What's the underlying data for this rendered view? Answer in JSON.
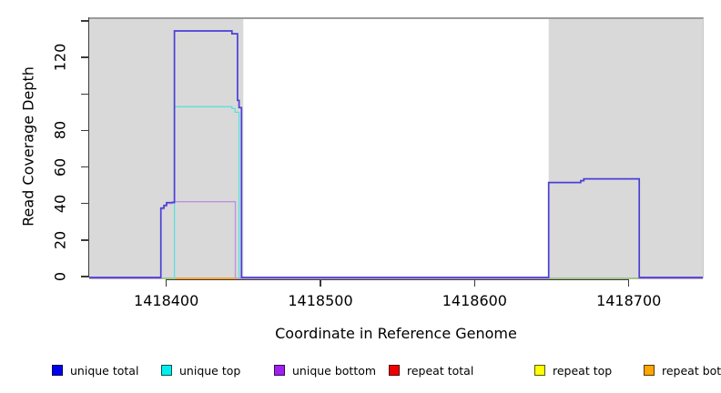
{
  "chart_data": {
    "type": "line",
    "step": true,
    "title": "",
    "xlabel": "Coordinate in Reference Genome",
    "ylabel": "Read Coverage Depth",
    "xlim": [
      1418350,
      1418748
    ],
    "ylim": [
      0,
      142
    ],
    "grid": false,
    "legend_position": "bottom-horizontal",
    "x_ticks": [
      {
        "value": 1418400,
        "label": "1418400"
      },
      {
        "value": 1418500,
        "label": "1418500"
      },
      {
        "value": 1418600,
        "label": "1418600"
      },
      {
        "value": 1418700,
        "label": "1418700"
      }
    ],
    "y_ticks": [
      {
        "value": 0,
        "label": "0"
      },
      {
        "value": 20,
        "label": "20"
      },
      {
        "value": 40,
        "label": "40"
      },
      {
        "value": 60,
        "label": "60"
      },
      {
        "value": 80,
        "label": "80"
      },
      {
        "value": 100,
        "label": ""
      },
      {
        "value": 120,
        "label": "120"
      },
      {
        "value": 140,
        "label": ""
      }
    ],
    "shaded_regions": [
      {
        "x0": 1418350,
        "x1": 1418450,
        "color": "#d9d9d9"
      },
      {
        "x0": 1418648,
        "x1": 1418748,
        "color": "#d9d9d9"
      }
    ],
    "series": [
      {
        "name": "repeat total",
        "line_color": "#dd2222",
        "segments": [
          [
            [
              1418350,
              0
            ],
            [
              1418748,
              0
            ]
          ]
        ]
      },
      {
        "name": "repeat top",
        "line_color": "#f0ec40",
        "segments": [
          [
            [
              1418350,
              0
            ],
            [
              1418748,
              0
            ]
          ]
        ]
      },
      {
        "name": "repeat bottom",
        "line_color": "#ff9a1e",
        "segments": [
          [
            [
              1418350,
              0
            ],
            [
              1418748,
              0
            ]
          ]
        ]
      },
      {
        "name": "unique top",
        "line_color": "#5ee0dc",
        "segments": [
          [
            [
              1418350,
              0
            ],
            [
              1418405.3,
              0
            ],
            [
              1418405.3,
              94
            ],
            [
              1418442.6,
              94
            ],
            [
              1418442.6,
              93
            ],
            [
              1418444.6,
              93
            ],
            [
              1418444.6,
              91
            ],
            [
              1418447.2,
              91
            ],
            [
              1418447.2,
              0
            ],
            [
              1418748,
              0
            ]
          ]
        ]
      },
      {
        "name": "unique bottom",
        "line_color": "#bb93dd",
        "segments": [
          [
            [
              1418350,
              0
            ],
            [
              1418396.5,
              0
            ],
            [
              1418396.5,
              38
            ],
            [
              1418398.5,
              38
            ],
            [
              1418398.5,
              39.5
            ],
            [
              1418400.2,
              39.5
            ],
            [
              1418400.2,
              41
            ],
            [
              1418403.8,
              41
            ],
            [
              1418403.8,
              42
            ],
            [
              1418444.8,
              42
            ],
            [
              1418444.8,
              0
            ],
            [
              1418748,
              0
            ]
          ]
        ]
      },
      {
        "name": "unlabeled green baseline",
        "line_color": "#8ecb8e",
        "segments": [
          [
            [
              1418398.5,
              0
            ],
            [
              1418403.5,
              0
            ]
          ],
          [
            [
              1418648,
              0
            ],
            [
              1418706.8,
              0
            ]
          ]
        ]
      },
      {
        "name": "unique total",
        "line_color": "#4a3fd8",
        "segments": [
          [
            [
              1418350,
              0
            ],
            [
              1418396.5,
              0
            ],
            [
              1418396.5,
              38
            ],
            [
              1418398.5,
              38
            ],
            [
              1418398.5,
              39.5
            ],
            [
              1418400.2,
              39.5
            ],
            [
              1418400.2,
              41
            ],
            [
              1418405.3,
              41
            ],
            [
              1418405.3,
              135
            ],
            [
              1418442.6,
              135
            ],
            [
              1418442.6,
              133.5
            ],
            [
              1418446.2,
              133.5
            ],
            [
              1418446.2,
              97
            ],
            [
              1418447.2,
              97
            ],
            [
              1418447.2,
              93
            ],
            [
              1418448.8,
              93
            ],
            [
              1418448.8,
              0
            ],
            [
              1418648,
              0
            ],
            [
              1418648,
              52
            ],
            [
              1418668.8,
              52
            ],
            [
              1418668.8,
              53
            ],
            [
              1418670.8,
              53
            ],
            [
              1418670.8,
              54
            ],
            [
              1418706.8,
              54
            ],
            [
              1418706.8,
              0
            ],
            [
              1418748,
              0
            ]
          ]
        ]
      }
    ],
    "legend": [
      {
        "label": "unique total",
        "swatch_color": "#0000ee"
      },
      {
        "label": "unique top",
        "swatch_color": "#00eeee"
      },
      {
        "label": "unique bottom",
        "swatch_color": "#a020f0"
      },
      {
        "label": "repeat total",
        "swatch_color": "#ee0000"
      },
      {
        "label": "repeat top",
        "swatch_color": "#ffff00"
      },
      {
        "label": "repeat bottom",
        "swatch_color": "#ffa500"
      }
    ]
  }
}
